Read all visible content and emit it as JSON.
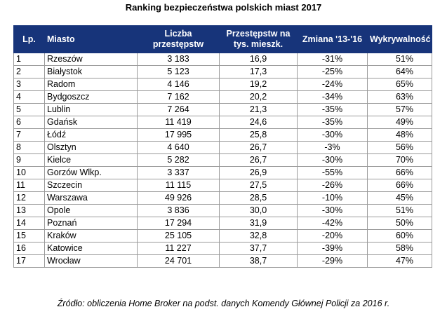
{
  "title": "Ranking bezpieczeństwa polskich miast 2017",
  "headers": {
    "lp": "Lp.",
    "city": "Miasto",
    "crimes_line1": "Liczba",
    "crimes_line2": "przestępstw",
    "rate_line1": "Przestępstw na",
    "rate_line2": "tys. mieszk.",
    "change": "Zmiana '13-'16",
    "detect": "Wykrywalność"
  },
  "rows": [
    {
      "lp": "1",
      "city": "Rzeszów",
      "crimes": "3 183",
      "rate": "16,9",
      "change": "-31%",
      "detect": "51%"
    },
    {
      "lp": "2",
      "city": "Białystok",
      "crimes": "5 123",
      "rate": "17,3",
      "change": "-25%",
      "detect": "64%"
    },
    {
      "lp": "3",
      "city": "Radom",
      "crimes": "4 146",
      "rate": "19,2",
      "change": "-24%",
      "detect": "65%"
    },
    {
      "lp": "4",
      "city": "Bydgoszcz",
      "crimes": "7 162",
      "rate": "20,2",
      "change": "-34%",
      "detect": "63%"
    },
    {
      "lp": "5",
      "city": "Lublin",
      "crimes": "7 264",
      "rate": "21,3",
      "change": "-35%",
      "detect": "57%"
    },
    {
      "lp": "6",
      "city": "Gdańsk",
      "crimes": "11 419",
      "rate": "24,6",
      "change": "-35%",
      "detect": "49%"
    },
    {
      "lp": "7",
      "city": "Łódź",
      "crimes": "17 995",
      "rate": "25,8",
      "change": "-30%",
      "detect": "48%"
    },
    {
      "lp": "8",
      "city": "Olsztyn",
      "crimes": "4 640",
      "rate": "26,7",
      "change": "-3%",
      "detect": "56%"
    },
    {
      "lp": "9",
      "city": "Kielce",
      "crimes": "5 282",
      "rate": "26,7",
      "change": "-30%",
      "detect": "70%"
    },
    {
      "lp": "10",
      "city": "Gorzów Wlkp.",
      "crimes": "3 337",
      "rate": "26,9",
      "change": "-55%",
      "detect": "66%"
    },
    {
      "lp": "11",
      "city": "Szczecin",
      "crimes": "11 115",
      "rate": "27,5",
      "change": "-26%",
      "detect": "66%"
    },
    {
      "lp": "12",
      "city": "Warszawa",
      "crimes": "49 926",
      "rate": "28,5",
      "change": "-10%",
      "detect": "45%"
    },
    {
      "lp": "13",
      "city": "Opole",
      "crimes": "3 836",
      "rate": "30,0",
      "change": "-30%",
      "detect": "51%"
    },
    {
      "lp": "14",
      "city": "Poznań",
      "crimes": "17 294",
      "rate": "31,9",
      "change": "-42%",
      "detect": "50%"
    },
    {
      "lp": "15",
      "city": "Kraków",
      "crimes": "25 105",
      "rate": "32,8",
      "change": "-20%",
      "detect": "60%"
    },
    {
      "lp": "16",
      "city": "Katowice",
      "crimes": "11 227",
      "rate": "37,7",
      "change": "-39%",
      "detect": "58%"
    },
    {
      "lp": "17",
      "city": "Wrocław",
      "crimes": "24 701",
      "rate": "38,7",
      "change": "-29%",
      "detect": "47%"
    }
  ],
  "source": "Źródło: obliczenia Home Broker na podst. danych Komendy Głównej Policji za 2016 r.",
  "colors": {
    "header_bg": "#17347a",
    "header_text": "#ffffff",
    "grid": "#9a9a9a"
  }
}
